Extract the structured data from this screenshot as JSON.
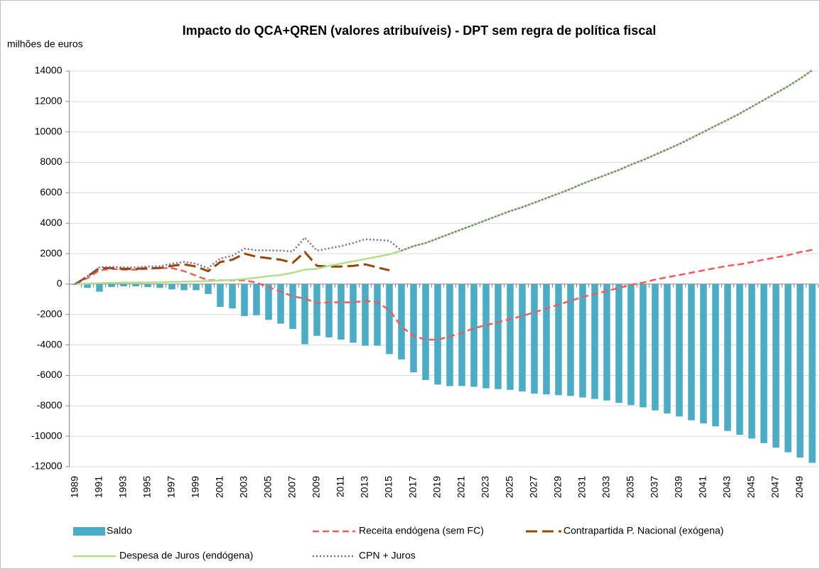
{
  "chart_data": {
    "type": "bar",
    "title": "Impacto do QCA+QREN  (valores atribuíveis) - DPT sem regra de política fiscal",
    "y_axis_label": "milhões de euros",
    "categories": [
      "1989",
      null,
      "1991",
      null,
      "1993",
      null,
      "1995",
      null,
      "1997",
      null,
      "1999",
      null,
      "2001",
      null,
      "2003",
      null,
      "2005",
      null,
      "2007",
      null,
      "2009",
      null,
      "2011",
      null,
      "2013",
      null,
      "2015",
      null,
      "2017",
      null,
      "2019",
      null,
      "2021",
      null,
      "2023",
      null,
      "2025",
      null,
      "2027",
      null,
      "2029",
      null,
      "2031",
      null,
      "2033",
      null,
      "2035",
      null,
      "2037",
      null,
      "2039",
      null,
      "2041",
      null,
      "2043",
      null,
      "2045",
      null,
      "2047",
      null,
      "2049",
      null
    ],
    "ylim": [
      -12000,
      14000
    ],
    "yticks": [
      -12000,
      -10000,
      -8000,
      -6000,
      -4000,
      -2000,
      0,
      2000,
      4000,
      6000,
      8000,
      10000,
      12000,
      14000
    ],
    "grid": true,
    "series": [
      {
        "name": "Saldo",
        "type": "bar",
        "color": "#4bacc6",
        "values": [
          -50,
          -250,
          -500,
          -200,
          -150,
          -150,
          -200,
          -250,
          -350,
          -400,
          -400,
          -650,
          -1500,
          -1600,
          -2100,
          -2050,
          -2350,
          -2600,
          -2950,
          -3950,
          -3400,
          -3500,
          -3650,
          -3850,
          -4050,
          -4050,
          -4600,
          -4950,
          -5800,
          -6300,
          -6600,
          -6700,
          -6700,
          -6750,
          -6850,
          -6900,
          -6950,
          -7050,
          -7200,
          -7250,
          -7300,
          -7350,
          -7450,
          -7550,
          -7650,
          -7800,
          -7950,
          -8100,
          -8300,
          -8500,
          -8700,
          -8950,
          -9150,
          -9350,
          -9650,
          -9900,
          -10150,
          -10450,
          -10750,
          -11050,
          -11400,
          -11750
        ]
      },
      {
        "name": "Receita endógena (sem FC)",
        "type": "line",
        "line_style": "dashed",
        "color": "#f15b5b",
        "values": [
          0,
          400,
          900,
          1000,
          950,
          950,
          1000,
          1050,
          1050,
          850,
          550,
          250,
          250,
          250,
          250,
          100,
          -200,
          -500,
          -800,
          -950,
          -1250,
          -1200,
          -1200,
          -1200,
          -1100,
          -1200,
          -1700,
          -2800,
          -3400,
          -3650,
          -3650,
          -3450,
          -3200,
          -2900,
          -2700,
          -2500,
          -2300,
          -2100,
          -1850,
          -1600,
          -1350,
          -1100,
          -850,
          -650,
          -450,
          -250,
          -50,
          100,
          300,
          450,
          600,
          750,
          900,
          1050,
          1200,
          1300,
          1450,
          1600,
          1750,
          1900,
          2100,
          2250
        ]
      },
      {
        "name": "Contrapartida P. Nacional (exógena)",
        "type": "line",
        "line_style": "long-dashed",
        "color": "#974706",
        "values": [
          0,
          500,
          1050,
          1050,
          1000,
          1000,
          1050,
          1050,
          1200,
          1300,
          1150,
          850,
          1450,
          1600,
          2000,
          1800,
          1700,
          1600,
          1400,
          2100,
          1200,
          1150,
          1150,
          1200,
          1300,
          1100,
          900,
          null,
          null,
          null,
          null,
          null,
          null,
          null,
          null,
          null,
          null,
          null,
          null,
          null,
          null,
          null,
          null,
          null,
          null,
          null,
          null,
          null,
          null,
          null,
          null,
          null,
          null,
          null,
          null,
          null,
          null,
          null,
          null,
          null,
          null,
          null
        ]
      },
      {
        "name": "Despesa de Juros (endógena)",
        "type": "line",
        "line_style": "solid",
        "color": "#b3de8c",
        "values": [
          0,
          30,
          60,
          80,
          100,
          100,
          110,
          120,
          140,
          160,
          180,
          200,
          230,
          270,
          330,
          420,
          520,
          600,
          750,
          950,
          1000,
          1200,
          1350,
          1500,
          1650,
          1800,
          1950,
          2200,
          2500,
          2700,
          3000,
          3300,
          3600,
          3900,
          4200,
          4500,
          4800,
          5050,
          5350,
          5650,
          5950,
          6250,
          6600,
          6900,
          7200,
          7500,
          7850,
          8150,
          8500,
          8850,
          9200,
          9600,
          10000,
          10400,
          10800,
          11200,
          11650,
          12100,
          12550,
          13000,
          13500,
          14050
        ]
      },
      {
        "name": "CPN + Juros",
        "type": "line",
        "line_style": "dotted",
        "color": "#7e62a8",
        "values": [
          0,
          530,
          1110,
          1130,
          1100,
          1100,
          1160,
          1170,
          1340,
          1460,
          1330,
          1050,
          1680,
          1870,
          2330,
          2220,
          2220,
          2200,
          2150,
          3050,
          2200,
          2350,
          2500,
          2700,
          2950,
          2900,
          2850,
          2200,
          2500,
          2700,
          3000,
          3300,
          3600,
          3900,
          4200,
          4500,
          4800,
          5050,
          5350,
          5650,
          5950,
          6250,
          6600,
          6900,
          7200,
          7500,
          7850,
          8150,
          8500,
          8850,
          9200,
          9600,
          10000,
          10400,
          10800,
          11200,
          11650,
          12100,
          12550,
          13000,
          13500,
          14050
        ]
      }
    ]
  }
}
